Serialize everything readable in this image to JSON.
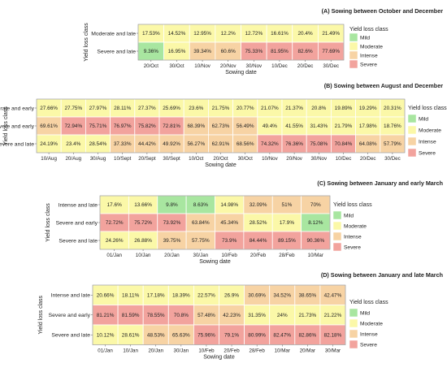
{
  "colors": {
    "Mild": "#a8e6a0",
    "Moderate": "#fbf8a8",
    "Intense": "#f7d3a4",
    "Severe": "#f2a39d"
  },
  "chart_data": [
    {
      "type": "heatmap",
      "title": "(A) Sowing between October and December",
      "xlabel": "Sowing date",
      "ylabel": "Yield loss class",
      "legend_title": "Yield loss class",
      "legend": [
        "Mild",
        "Moderate",
        "Intense",
        "Severe"
      ],
      "x": [
        "20/Oct",
        "30/Oct",
        "10/Nov",
        "20/Nov",
        "30/Nov",
        "10/Dec",
        "20/Dec",
        "30/Dec"
      ],
      "rows": [
        {
          "label": "Moderate and late",
          "values": [
            "17.53%",
            "14.52%",
            "12.95%",
            "12.2%",
            "12.72%",
            "16.61%",
            "20.4%",
            "21.49%"
          ],
          "classes": [
            "Moderate",
            "Moderate",
            "Moderate",
            "Moderate",
            "Moderate",
            "Moderate",
            "Moderate",
            "Moderate"
          ]
        },
        {
          "label": "Severe and late",
          "values": [
            "9.36%",
            "16.95%",
            "39.34%",
            "60.6%",
            "75.33%",
            "81.95%",
            "82.6%",
            "77.69%"
          ],
          "classes": [
            "Mild",
            "Moderate",
            "Intense",
            "Intense",
            "Severe",
            "Severe",
            "Severe",
            "Severe"
          ]
        }
      ]
    },
    {
      "type": "heatmap",
      "title": "(B) Sowing between August and December",
      "xlabel": "Sowing date",
      "ylabel": "Yield loss class",
      "legend_title": "Yield loss class",
      "legend": [
        "Mild",
        "Moderate",
        "Intense",
        "Severe"
      ],
      "x": [
        "10/Aug",
        "20/Aug",
        "30/Aug",
        "10/Sept",
        "20/Sept",
        "30/Sept",
        "10/Oct",
        "20/Oct",
        "30/Oct",
        "10/Nov",
        "20/Nov",
        "30/Nov",
        "10/Dec",
        "20/Dec",
        "30/Dec"
      ],
      "rows": [
        {
          "label": "Moderate and early",
          "values": [
            "27.66%",
            "27.75%",
            "27.97%",
            "28.11%",
            "27.37%",
            "25.69%",
            "23.6%",
            "21.75%",
            "20.77%",
            "21.07%",
            "21.37%",
            "20.8%",
            "19.89%",
            "19.29%",
            "20.31%"
          ],
          "classes": [
            "Moderate",
            "Moderate",
            "Moderate",
            "Moderate",
            "Moderate",
            "Moderate",
            "Moderate",
            "Moderate",
            "Moderate",
            "Moderate",
            "Moderate",
            "Moderate",
            "Moderate",
            "Moderate",
            "Moderate"
          ]
        },
        {
          "label": "Severe and early",
          "values": [
            "69.61%",
            "72.94%",
            "75.71%",
            "76.97%",
            "75.82%",
            "72.81%",
            "68.39%",
            "62.73%",
            "56.49%",
            "49.4%",
            "41.55%",
            "31.43%",
            "21.79%",
            "17.98%",
            "18.76%"
          ],
          "classes": [
            "Intense",
            "Severe",
            "Severe",
            "Severe",
            "Severe",
            "Severe",
            "Intense",
            "Intense",
            "Intense",
            "Moderate",
            "Moderate",
            "Moderate",
            "Moderate",
            "Moderate",
            "Moderate"
          ]
        },
        {
          "label": "Severe and late",
          "values": [
            "24.19%",
            "23.4%",
            "28.54%",
            "37.33%",
            "44.42%",
            "49.92%",
            "56.27%",
            "62.91%",
            "68.56%",
            "74.32%",
            "76.36%",
            "75.08%",
            "70.84%",
            "64.08%",
            "57.79%"
          ],
          "classes": [
            "Moderate",
            "Moderate",
            "Moderate",
            "Intense",
            "Intense",
            "Intense",
            "Intense",
            "Intense",
            "Intense",
            "Severe",
            "Severe",
            "Severe",
            "Severe",
            "Intense",
            "Intense"
          ]
        }
      ]
    },
    {
      "type": "heatmap",
      "title": "(C) Sowing between January and early March",
      "xlabel": "Sowing date",
      "ylabel": "Yield loss class",
      "legend_title": "Yield loss class",
      "legend": [
        "Mild",
        "Moderate",
        "Intense",
        "Severe"
      ],
      "x": [
        "01/Jan",
        "10/Jan",
        "20/Jan",
        "30/Jan",
        "10/Feb",
        "20/Feb",
        "28/Feb",
        "10/Mar"
      ],
      "rows": [
        {
          "label": "Intense and late",
          "values": [
            "17.6%",
            "13.66%",
            "9.8%",
            "8.63%",
            "14.98%",
            "32.09%",
            "51%",
            "70%"
          ],
          "classes": [
            "Moderate",
            "Moderate",
            "Mild",
            "Mild",
            "Moderate",
            "Intense",
            "Intense",
            "Intense"
          ]
        },
        {
          "label": "Severe and early",
          "values": [
            "72.72%",
            "75.72%",
            "73.92%",
            "63.84%",
            "45.34%",
            "28.52%",
            "17.9%",
            "8.12%"
          ],
          "classes": [
            "Severe",
            "Severe",
            "Severe",
            "Intense",
            "Intense",
            "Moderate",
            "Moderate",
            "Mild"
          ]
        },
        {
          "label": "Severe and late",
          "values": [
            "24.26%",
            "26.88%",
            "39.75%",
            "57.75%",
            "73.9%",
            "84.44%",
            "89.15%",
            "90.36%"
          ],
          "classes": [
            "Moderate",
            "Moderate",
            "Intense",
            "Intense",
            "Severe",
            "Severe",
            "Severe",
            "Severe"
          ]
        }
      ]
    },
    {
      "type": "heatmap",
      "title": "(D) Sowing between January and late March",
      "xlabel": "Sowing date",
      "ylabel": "Yield loss class",
      "legend_title": "Yield loss class",
      "legend": [
        "Mild",
        "Moderate",
        "Intense",
        "Severe"
      ],
      "x": [
        "01/Jan",
        "10/Jan",
        "20/Jan",
        "30/Jan",
        "10/Feb",
        "20/Feb",
        "28/Feb",
        "10/Mar",
        "20/Mar",
        "30/Mar"
      ],
      "rows": [
        {
          "label": "Intense and late",
          "values": [
            "20.66%",
            "18.11%",
            "17.18%",
            "18.39%",
            "22.57%",
            "26.9%",
            "30.69%",
            "34.52%",
            "38.65%",
            "42.47%"
          ],
          "classes": [
            "Moderate",
            "Moderate",
            "Moderate",
            "Moderate",
            "Moderate",
            "Moderate",
            "Intense",
            "Intense",
            "Intense",
            "Intense"
          ]
        },
        {
          "label": "Severe and early",
          "values": [
            "81.21%",
            "81.59%",
            "78.55%",
            "70.8%",
            "57.48%",
            "42.23%",
            "31.35%",
            "24%",
            "21.73%",
            "21.22%"
          ],
          "classes": [
            "Severe",
            "Severe",
            "Severe",
            "Severe",
            "Intense",
            "Intense",
            "Moderate",
            "Moderate",
            "Moderate",
            "Moderate"
          ]
        },
        {
          "label": "Severe and late",
          "values": [
            "10.12%",
            "28.61%",
            "48.53%",
            "65.63%",
            "75.96%",
            "79.1%",
            "80.99%",
            "82.47%",
            "82.86%",
            "82.18%"
          ],
          "classes": [
            "Moderate",
            "Moderate",
            "Intense",
            "Intense",
            "Severe",
            "Severe",
            "Severe",
            "Severe",
            "Severe",
            "Severe"
          ]
        }
      ]
    }
  ]
}
